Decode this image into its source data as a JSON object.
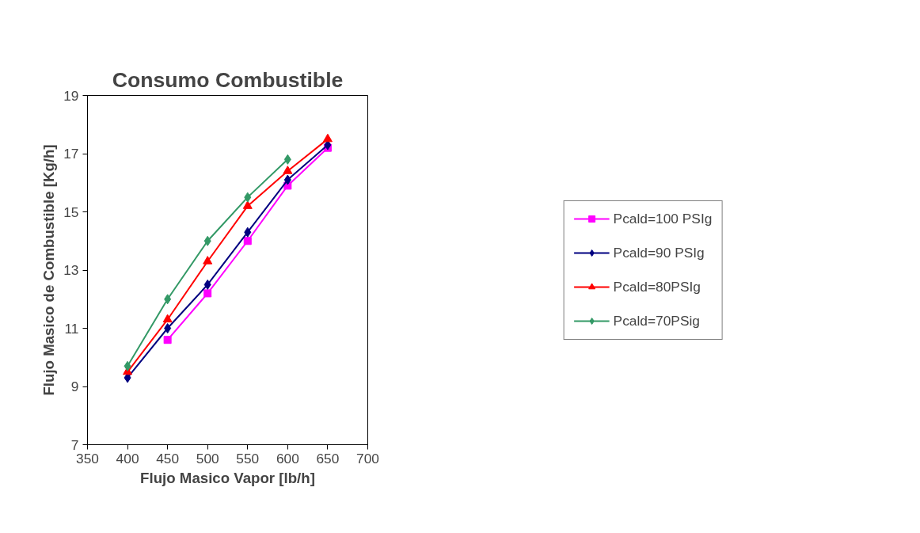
{
  "chart_data": {
    "type": "line",
    "title": "Consumo Combustible",
    "xlabel": "Flujo Masico Vapor [lb/h]",
    "ylabel": "Flujo Masico de Combustible [Kg/h]",
    "xlim": [
      350,
      700
    ],
    "xticks": [
      350,
      400,
      450,
      500,
      550,
      600,
      650,
      700
    ],
    "ylim": [
      7,
      19
    ],
    "yticks": [
      7,
      9,
      11,
      13,
      15,
      17,
      19
    ],
    "grid": false,
    "legend": "right",
    "line_style": "solid",
    "series": [
      {
        "name": "Pcald=100 PSIg",
        "color": "#ff00ff",
        "marker": "square",
        "x": [
          450,
          500,
          550,
          600,
          650
        ],
        "values": [
          10.6,
          12.2,
          14.0,
          15.9,
          17.2
        ]
      },
      {
        "name": "Pcald=90 PSIg",
        "color": "#000080",
        "marker": "diamond",
        "x": [
          400,
          450,
          500,
          550,
          600,
          650
        ],
        "values": [
          9.3,
          11.0,
          12.5,
          14.3,
          16.1,
          17.3
        ]
      },
      {
        "name": "Pcald=80PSIg",
        "color": "#ff0000",
        "marker": "triangle",
        "x": [
          400,
          450,
          500,
          550,
          600,
          650
        ],
        "values": [
          9.5,
          11.3,
          13.3,
          15.2,
          16.4,
          17.5
        ]
      },
      {
        "name": "Pcald=70PSig",
        "color": "#339966",
        "marker": "diamond",
        "x": [
          400,
          450,
          500,
          550,
          600
        ],
        "values": [
          9.7,
          12.0,
          14.0,
          15.5,
          16.8
        ]
      }
    ]
  }
}
